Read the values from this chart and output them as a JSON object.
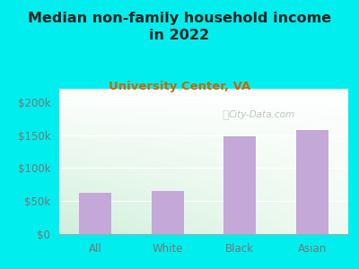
{
  "title": "Median non-family household income\nin 2022",
  "subtitle": "University Center, VA",
  "categories": [
    "All",
    "White",
    "Black",
    "Asian"
  ],
  "values": [
    63000,
    65000,
    148000,
    158000
  ],
  "bar_color": "#c4a8d8",
  "ylim": [
    0,
    220000
  ],
  "yticks": [
    0,
    50000,
    100000,
    150000,
    200000
  ],
  "ytick_labels": [
    "$0",
    "$50k",
    "$100k",
    "$150k",
    "$200k"
  ],
  "bg_outer": "#00eeee",
  "bg_plot_topleft": "#e8f5e4",
  "bg_plot_topright": "#ffffff",
  "bg_plot_bottomleft": "#d0ecd8",
  "bg_plot_bottomright": "#eefaf2",
  "title_color": "#222222",
  "subtitle_color": "#cc6600",
  "axis_label_color": "#777777",
  "watermark": "City-Data.com",
  "title_fontsize": 11.5,
  "subtitle_fontsize": 9.5,
  "tick_fontsize": 8.5
}
